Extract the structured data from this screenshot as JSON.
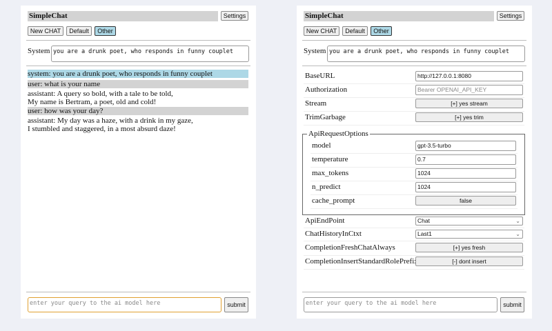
{
  "app": {
    "title": "SimpleChat",
    "settings_label": "Settings",
    "new_chat_label": "New CHAT",
    "default_label": "Default",
    "other_label": "Other",
    "system_label": "System",
    "system_prompt": "you are a drunk poet, who responds in funny couplet",
    "query_placeholder": "enter your query to the ai model here",
    "submit_label": "submit"
  },
  "chat": [
    {
      "role": "system",
      "lines": [
        "system: you are a drunk poet, who responds in funny couplet"
      ]
    },
    {
      "role": "user",
      "lines": [
        "user: what is your name"
      ]
    },
    {
      "role": "assistant",
      "lines": [
        "assistant: A query so bold, with a tale to be told,",
        "My name is Bertram, a poet, old and cold!"
      ]
    },
    {
      "role": "user",
      "lines": [
        "user: how was your day?"
      ]
    },
    {
      "role": "assistant",
      "lines": [
        "assistant: My day was a haze, with a drink in my gaze,",
        "I stumbled and staggered, in a most absurd daze!"
      ]
    }
  ],
  "settings": {
    "base_url": {
      "label": "BaseURL",
      "value": "http://127.0.0.1:8080"
    },
    "authorization": {
      "label": "Authorization",
      "placeholder": "Bearer OPENAI_API_KEY"
    },
    "stream": {
      "label": "Stream",
      "value": "[+] yes stream"
    },
    "trim": {
      "label": "TrimGarbage",
      "value": "[+] yes trim"
    },
    "api_opts": {
      "legend": "ApiRequestOptions",
      "model": {
        "label": "model",
        "value": "gpt-3.5-turbo"
      },
      "temperature": {
        "label": "temperature",
        "value": "0.7"
      },
      "max_tokens": {
        "label": "max_tokens",
        "value": "1024"
      },
      "n_predict": {
        "label": "n_predict",
        "value": "1024"
      },
      "cache_prompt": {
        "label": "cache_prompt",
        "value": "false"
      }
    },
    "endpoint": {
      "label": "ApiEndPoint",
      "value": "Chat"
    },
    "history": {
      "label": "ChatHistoryInCtxt",
      "value": "Last1"
    },
    "fresh": {
      "label": "CompletionFreshChatAlways",
      "value": "[+] yes fresh"
    },
    "prefix": {
      "label": "CompletionInsertStandardRolePrefix",
      "value": "[-] dont insert"
    }
  },
  "colors": {
    "system_bg": "#add8e6",
    "user_bg": "#d3d3d3",
    "focus_border": "#e0a030"
  }
}
